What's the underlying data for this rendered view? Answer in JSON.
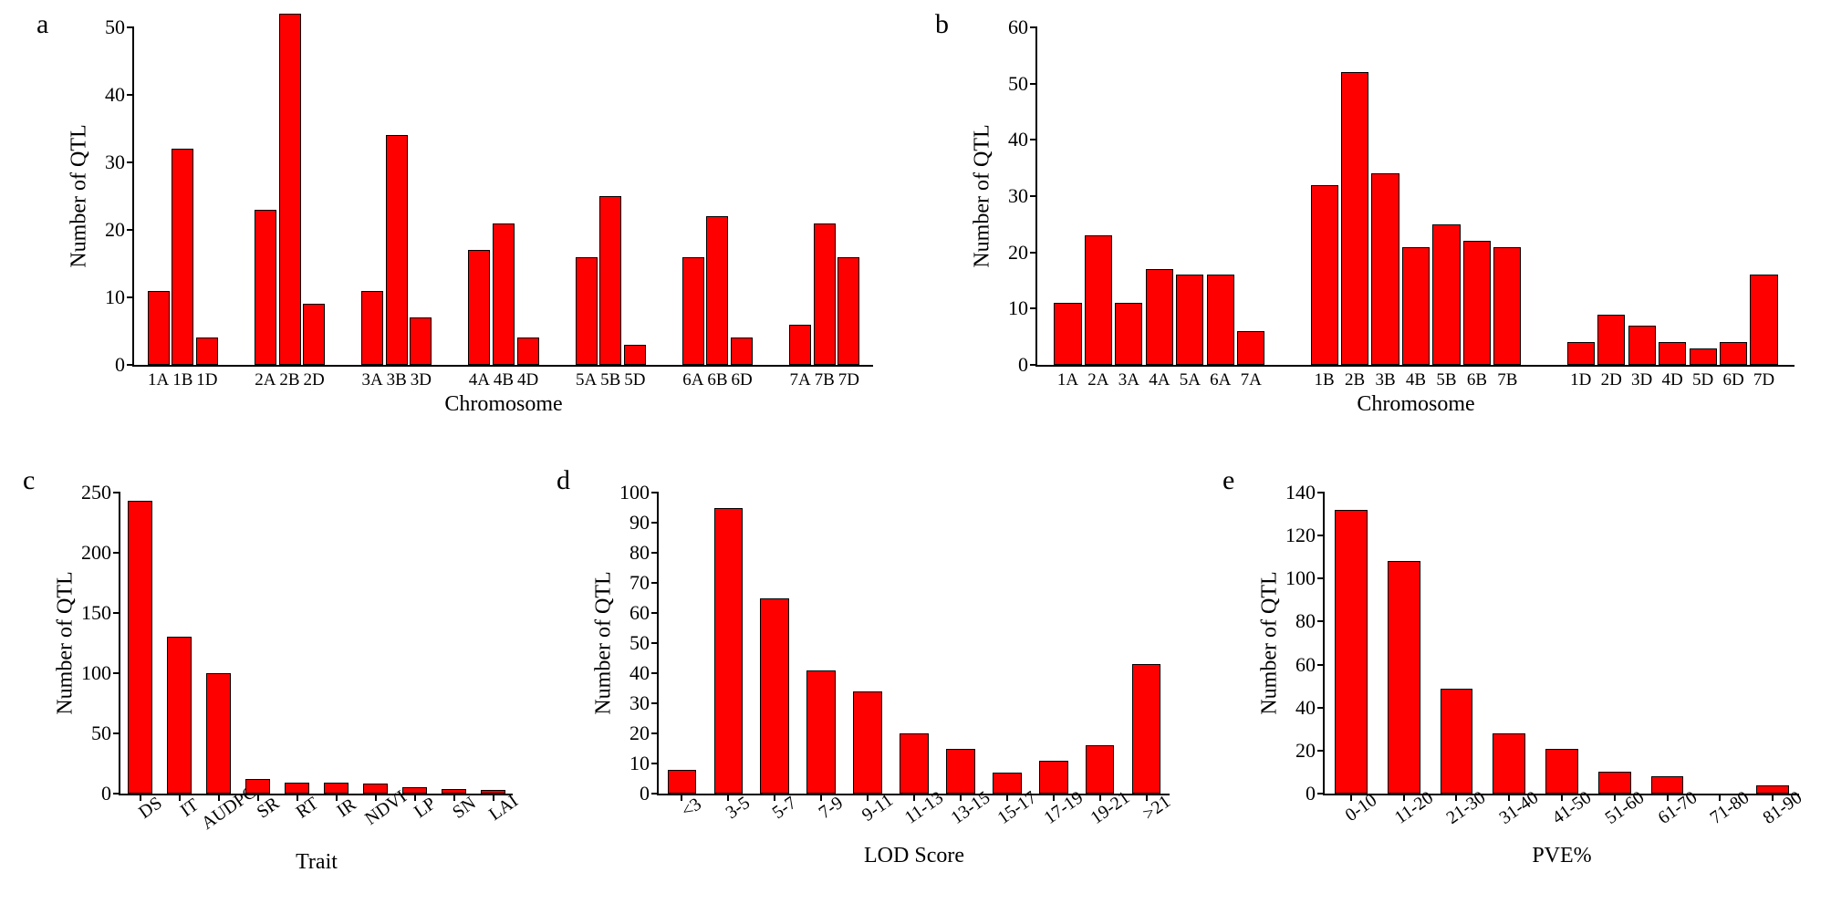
{
  "global": {
    "bar_fill": "#ff0000",
    "bar_stroke": "#000000",
    "background": "#ffffff",
    "font_family": "Times New Roman",
    "label_fontsize_panel": 30,
    "label_fontsize_axis": 24,
    "label_fontsize_tick": 22
  },
  "panels": {
    "a": {
      "label": "a",
      "x_title": "Chromosome",
      "y_title": "Number of QTL",
      "ylim": [
        0,
        50
      ],
      "ytick_step": 10,
      "type": "grouped-bar",
      "groups": [
        {
          "cats": [
            "1A",
            "1B",
            "1D"
          ],
          "vals": [
            11,
            32,
            4
          ]
        },
        {
          "cats": [
            "2A",
            "2B",
            "2D"
          ],
          "vals": [
            23,
            52,
            9
          ]
        },
        {
          "cats": [
            "3A",
            "3B",
            "3D"
          ],
          "vals": [
            11,
            34,
            7
          ]
        },
        {
          "cats": [
            "4A",
            "4B",
            "4D"
          ],
          "vals": [
            17,
            21,
            4
          ]
        },
        {
          "cats": [
            "5A",
            "5B",
            "5D"
          ],
          "vals": [
            16,
            25,
            3
          ]
        },
        {
          "cats": [
            "6A",
            "6B",
            "6D"
          ],
          "vals": [
            16,
            22,
            4
          ]
        },
        {
          "cats": [
            "7A",
            "7B",
            "7D"
          ],
          "vals": [
            6,
            21,
            16
          ]
        }
      ]
    },
    "b": {
      "label": "b",
      "x_title": "Chromosome",
      "y_title": "Number of QTL",
      "ylim": [
        0,
        60
      ],
      "ytick_step": 10,
      "type": "grouped-bar",
      "groups": [
        {
          "cats": [
            "1A",
            "2A",
            "3A",
            "4A",
            "5A",
            "6A",
            "7A"
          ],
          "vals": [
            11,
            23,
            11,
            17,
            16,
            16,
            6
          ]
        },
        {
          "cats": [
            "1B",
            "2B",
            "3B",
            "4B",
            "5B",
            "6B",
            "7B"
          ],
          "vals": [
            32,
            52,
            34,
            21,
            25,
            22,
            21
          ]
        },
        {
          "cats": [
            "1D",
            "2D",
            "3D",
            "4D",
            "5D",
            "6D",
            "7D"
          ],
          "vals": [
            4,
            9,
            7,
            4,
            3,
            4,
            16
          ]
        }
      ]
    },
    "c": {
      "label": "c",
      "x_title": "Trait",
      "y_title": "Number of QTL",
      "ylim": [
        0,
        250
      ],
      "ytick_step": 50,
      "type": "bar",
      "rotated_x": true,
      "categories": [
        "DS",
        "IT",
        "AUDPC",
        "SR",
        "RT",
        "IR",
        "NDVI",
        "LP",
        "SN",
        "LAI"
      ],
      "values": [
        243,
        130,
        100,
        12,
        9,
        9,
        8,
        5,
        4,
        3
      ]
    },
    "d": {
      "label": "d",
      "x_title": "LOD Score",
      "y_title": "Number of QTL",
      "ylim": [
        0,
        100
      ],
      "ytick_step": 10,
      "type": "bar",
      "rotated_x": true,
      "categories": [
        "<3",
        "3-5",
        "5-7",
        "7-9",
        "9-11",
        "11-13",
        "13-15",
        "15-17",
        "17-19",
        "19-21",
        ">21"
      ],
      "values": [
        8,
        95,
        65,
        41,
        34,
        20,
        15,
        7,
        11,
        16,
        43
      ]
    },
    "e": {
      "label": "e",
      "x_title": "PVE%",
      "y_title": "Number of QTL",
      "ylim": [
        0,
        140
      ],
      "ytick_step": 20,
      "type": "bar",
      "rotated_x": true,
      "categories": [
        "0-10",
        "11-20",
        "21-30",
        "31-40",
        "41-50",
        "51-60",
        "61-70",
        "71-80",
        "81-90"
      ],
      "values": [
        132,
        108,
        49,
        28,
        21,
        10,
        8,
        0,
        4
      ]
    }
  }
}
